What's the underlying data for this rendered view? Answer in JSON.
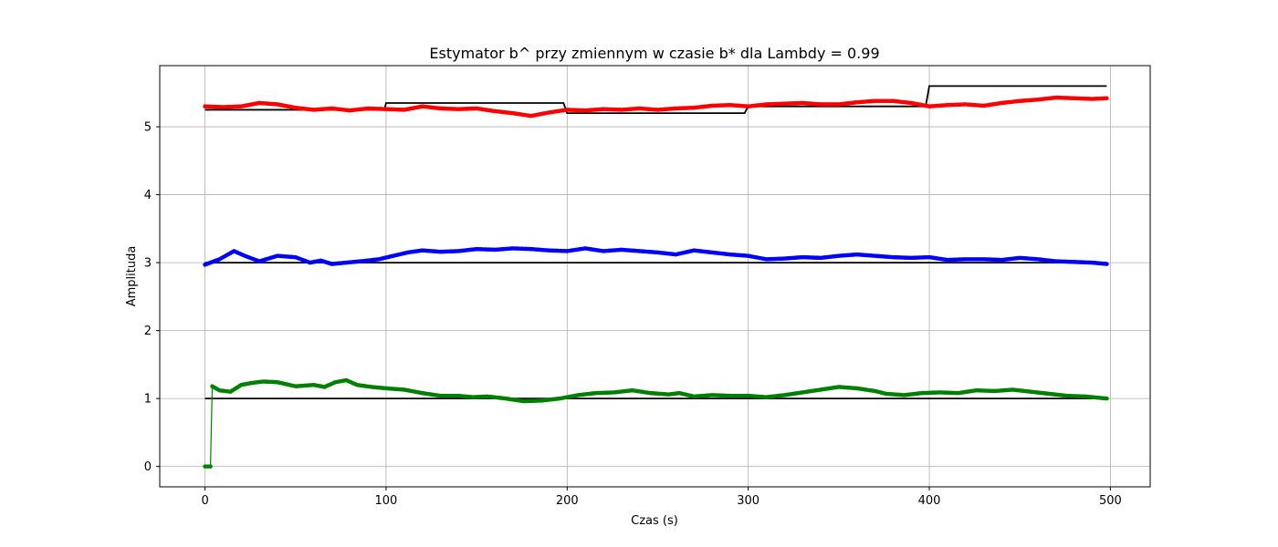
{
  "chart_data": {
    "type": "scatter",
    "title": "Estymator b^  przy zmiennym w czasie b* dla Lambdy = 0.99",
    "xlabel": "Czas (s)",
    "ylabel": "Amplituda",
    "xlim": [
      -25,
      522
    ],
    "ylim": [
      -0.3,
      5.9
    ],
    "xticks": [
      0,
      100,
      200,
      300,
      400,
      500
    ],
    "yticks": [
      0,
      1,
      2,
      3,
      4,
      5
    ],
    "grid": true,
    "colors": {
      "red": "#ff0000",
      "blue": "#0000ff",
      "green": "#008000",
      "reference": "#000000",
      "grid": "#b0b0b0"
    },
    "reference_lines": [
      {
        "points": [
          [
            0,
            5.25
          ],
          [
            99,
            5.25
          ],
          [
            100,
            5.35
          ],
          [
            198,
            5.35
          ],
          [
            200,
            5.2
          ],
          [
            298,
            5.2
          ],
          [
            300,
            5.3
          ],
          [
            398,
            5.3
          ],
          [
            400,
            5.6
          ],
          [
            498,
            5.6
          ]
        ]
      },
      {
        "points": [
          [
            0,
            3.0
          ],
          [
            498,
            3.0
          ]
        ]
      },
      {
        "points": [
          [
            0,
            1.0
          ],
          [
            498,
            1.0
          ]
        ]
      }
    ],
    "series": [
      {
        "color": "#ff0000",
        "keypoints": [
          [
            0,
            5.3
          ],
          [
            10,
            5.29
          ],
          [
            20,
            5.3
          ],
          [
            30,
            5.35
          ],
          [
            40,
            5.33
          ],
          [
            50,
            5.28
          ],
          [
            60,
            5.25
          ],
          [
            70,
            5.27
          ],
          [
            80,
            5.24
          ],
          [
            90,
            5.27
          ],
          [
            100,
            5.26
          ],
          [
            110,
            5.25
          ],
          [
            120,
            5.3
          ],
          [
            130,
            5.27
          ],
          [
            140,
            5.26
          ],
          [
            150,
            5.27
          ],
          [
            160,
            5.23
          ],
          [
            170,
            5.2
          ],
          [
            180,
            5.16
          ],
          [
            190,
            5.21
          ],
          [
            200,
            5.25
          ],
          [
            210,
            5.24
          ],
          [
            220,
            5.26
          ],
          [
            230,
            5.25
          ],
          [
            240,
            5.27
          ],
          [
            250,
            5.25
          ],
          [
            260,
            5.27
          ],
          [
            270,
            5.28
          ],
          [
            280,
            5.31
          ],
          [
            290,
            5.32
          ],
          [
            300,
            5.3
          ],
          [
            310,
            5.33
          ],
          [
            320,
            5.34
          ],
          [
            330,
            5.35
          ],
          [
            340,
            5.33
          ],
          [
            350,
            5.33
          ],
          [
            360,
            5.36
          ],
          [
            370,
            5.38
          ],
          [
            380,
            5.38
          ],
          [
            390,
            5.35
          ],
          [
            400,
            5.3
          ],
          [
            410,
            5.32
          ],
          [
            420,
            5.33
          ],
          [
            430,
            5.31
          ],
          [
            440,
            5.35
          ],
          [
            450,
            5.38
          ],
          [
            460,
            5.4
          ],
          [
            470,
            5.43
          ],
          [
            480,
            5.42
          ],
          [
            490,
            5.41
          ],
          [
            498,
            5.42
          ]
        ]
      },
      {
        "color": "#0000ff",
        "keypoints": [
          [
            0,
            2.97
          ],
          [
            8,
            3.05
          ],
          [
            16,
            3.17
          ],
          [
            22,
            3.1
          ],
          [
            30,
            3.02
          ],
          [
            40,
            3.1
          ],
          [
            50,
            3.08
          ],
          [
            58,
            3.0
          ],
          [
            64,
            3.03
          ],
          [
            70,
            2.98
          ],
          [
            78,
            3.0
          ],
          [
            86,
            3.02
          ],
          [
            96,
            3.05
          ],
          [
            104,
            3.1
          ],
          [
            112,
            3.15
          ],
          [
            120,
            3.18
          ],
          [
            130,
            3.16
          ],
          [
            140,
            3.17
          ],
          [
            150,
            3.2
          ],
          [
            160,
            3.19
          ],
          [
            170,
            3.21
          ],
          [
            180,
            3.2
          ],
          [
            190,
            3.18
          ],
          [
            200,
            3.17
          ],
          [
            210,
            3.21
          ],
          [
            220,
            3.17
          ],
          [
            230,
            3.19
          ],
          [
            240,
            3.17
          ],
          [
            250,
            3.15
          ],
          [
            260,
            3.12
          ],
          [
            270,
            3.18
          ],
          [
            280,
            3.15
          ],
          [
            290,
            3.12
          ],
          [
            300,
            3.1
          ],
          [
            310,
            3.05
          ],
          [
            320,
            3.06
          ],
          [
            330,
            3.08
          ],
          [
            340,
            3.07
          ],
          [
            350,
            3.1
          ],
          [
            360,
            3.12
          ],
          [
            370,
            3.1
          ],
          [
            380,
            3.08
          ],
          [
            390,
            3.07
          ],
          [
            400,
            3.08
          ],
          [
            410,
            3.04
          ],
          [
            420,
            3.05
          ],
          [
            430,
            3.05
          ],
          [
            440,
            3.04
          ],
          [
            450,
            3.07
          ],
          [
            460,
            3.05
          ],
          [
            470,
            3.02
          ],
          [
            480,
            3.01
          ],
          [
            490,
            3.0
          ],
          [
            498,
            2.98
          ]
        ]
      },
      {
        "color": "#008000",
        "keypoints": [
          [
            0,
            0.0
          ],
          [
            3,
            0.0
          ],
          [
            4,
            1.18
          ],
          [
            8,
            1.12
          ],
          [
            14,
            1.1
          ],
          [
            20,
            1.2
          ],
          [
            26,
            1.23
          ],
          [
            32,
            1.25
          ],
          [
            40,
            1.24
          ],
          [
            50,
            1.18
          ],
          [
            60,
            1.2
          ],
          [
            66,
            1.17
          ],
          [
            72,
            1.24
          ],
          [
            78,
            1.27
          ],
          [
            84,
            1.2
          ],
          [
            92,
            1.17
          ],
          [
            100,
            1.15
          ],
          [
            110,
            1.13
          ],
          [
            120,
            1.08
          ],
          [
            130,
            1.04
          ],
          [
            140,
            1.04
          ],
          [
            148,
            1.02
          ],
          [
            156,
            1.03
          ],
          [
            166,
            1.0
          ],
          [
            176,
            0.96
          ],
          [
            186,
            0.97
          ],
          [
            196,
            1.0
          ],
          [
            206,
            1.05
          ],
          [
            216,
            1.08
          ],
          [
            226,
            1.09
          ],
          [
            236,
            1.12
          ],
          [
            246,
            1.08
          ],
          [
            256,
            1.06
          ],
          [
            262,
            1.08
          ],
          [
            270,
            1.03
          ],
          [
            280,
            1.05
          ],
          [
            290,
            1.04
          ],
          [
            300,
            1.04
          ],
          [
            310,
            1.02
          ],
          [
            320,
            1.05
          ],
          [
            330,
            1.09
          ],
          [
            340,
            1.13
          ],
          [
            350,
            1.17
          ],
          [
            360,
            1.15
          ],
          [
            370,
            1.11
          ],
          [
            376,
            1.07
          ],
          [
            386,
            1.05
          ],
          [
            396,
            1.08
          ],
          [
            406,
            1.09
          ],
          [
            416,
            1.08
          ],
          [
            426,
            1.12
          ],
          [
            436,
            1.11
          ],
          [
            446,
            1.13
          ],
          [
            456,
            1.1
          ],
          [
            466,
            1.07
          ],
          [
            476,
            1.04
          ],
          [
            486,
            1.03
          ],
          [
            498,
            1.0
          ]
        ]
      }
    ]
  }
}
